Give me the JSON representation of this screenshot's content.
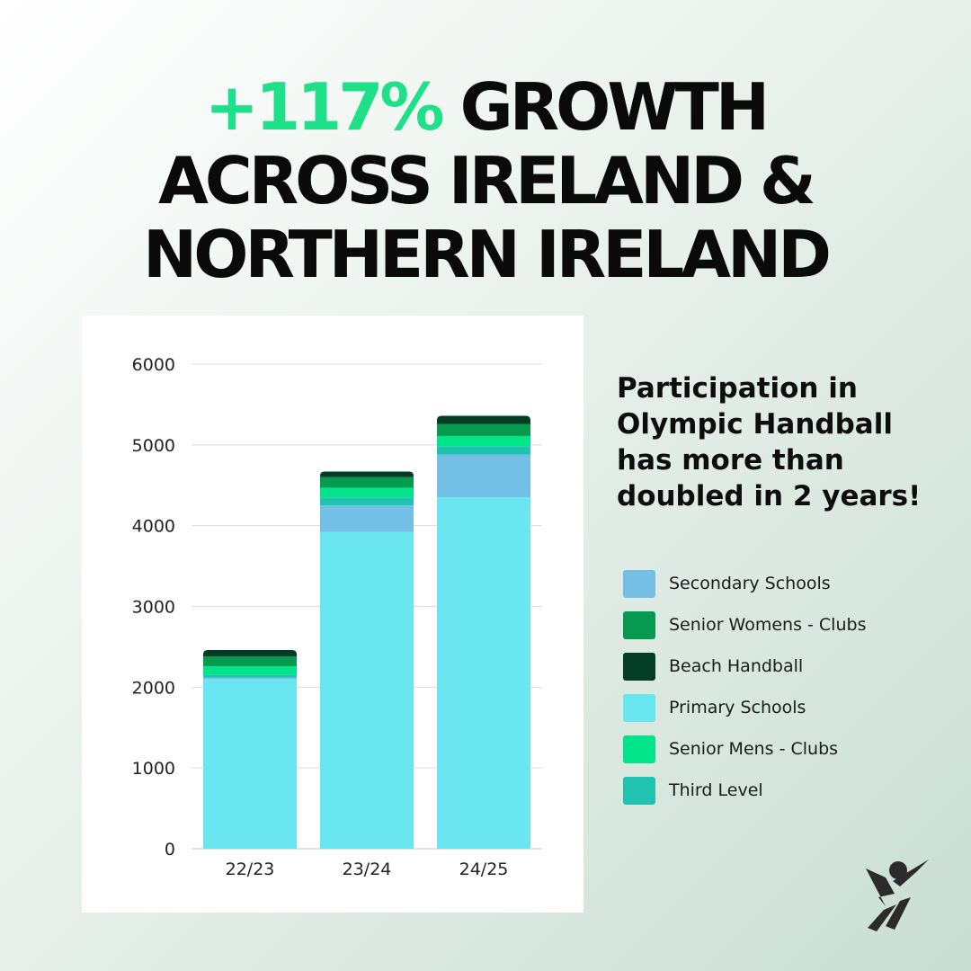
{
  "headline": {
    "accent": "+117%",
    "line1_rest": "GROWTH",
    "line2": "ACROSS IRELAND &",
    "line3": "NORTHERN IRELAND"
  },
  "tagline": "Participation in Olympic Handball has more than doubled in 2 years!",
  "logo": {
    "icon": "handball-player-logo",
    "color": "#2b2b2b"
  },
  "chart_data": {
    "type": "bar",
    "stacked": true,
    "title": "",
    "xlabel": "",
    "ylabel": "",
    "ylim": [
      0,
      6000
    ],
    "yticks": [
      0,
      1000,
      2000,
      3000,
      4000,
      5000,
      6000
    ],
    "grid": true,
    "legend_position": "right",
    "categories": [
      "22/23",
      "23/24",
      "24/25"
    ],
    "series": [
      {
        "name": "Primary Schools",
        "color": "#6ae6f0",
        "values": [
          2100,
          3920,
          4350
        ]
      },
      {
        "name": "Secondary Schools",
        "color": "#74bfe6",
        "values": [
          20,
          330,
          530
        ]
      },
      {
        "name": "Third Level",
        "color": "#20c3b0",
        "values": [
          30,
          100,
          100
        ]
      },
      {
        "name": "Senior Mens - Clubs",
        "color": "#00e48a",
        "values": [
          110,
          120,
          130
        ]
      },
      {
        "name": "Senior Womens - Clubs",
        "color": "#069a4e",
        "values": [
          120,
          130,
          150
        ]
      },
      {
        "name": "Beach Handball",
        "color": "#033d25",
        "values": [
          80,
          70,
          100
        ]
      }
    ],
    "legend_order": [
      "Secondary Schools",
      "Senior Womens - Clubs",
      "Beach Handball",
      "Primary Schools",
      "Senior Mens - Clubs",
      "Third Level"
    ]
  }
}
